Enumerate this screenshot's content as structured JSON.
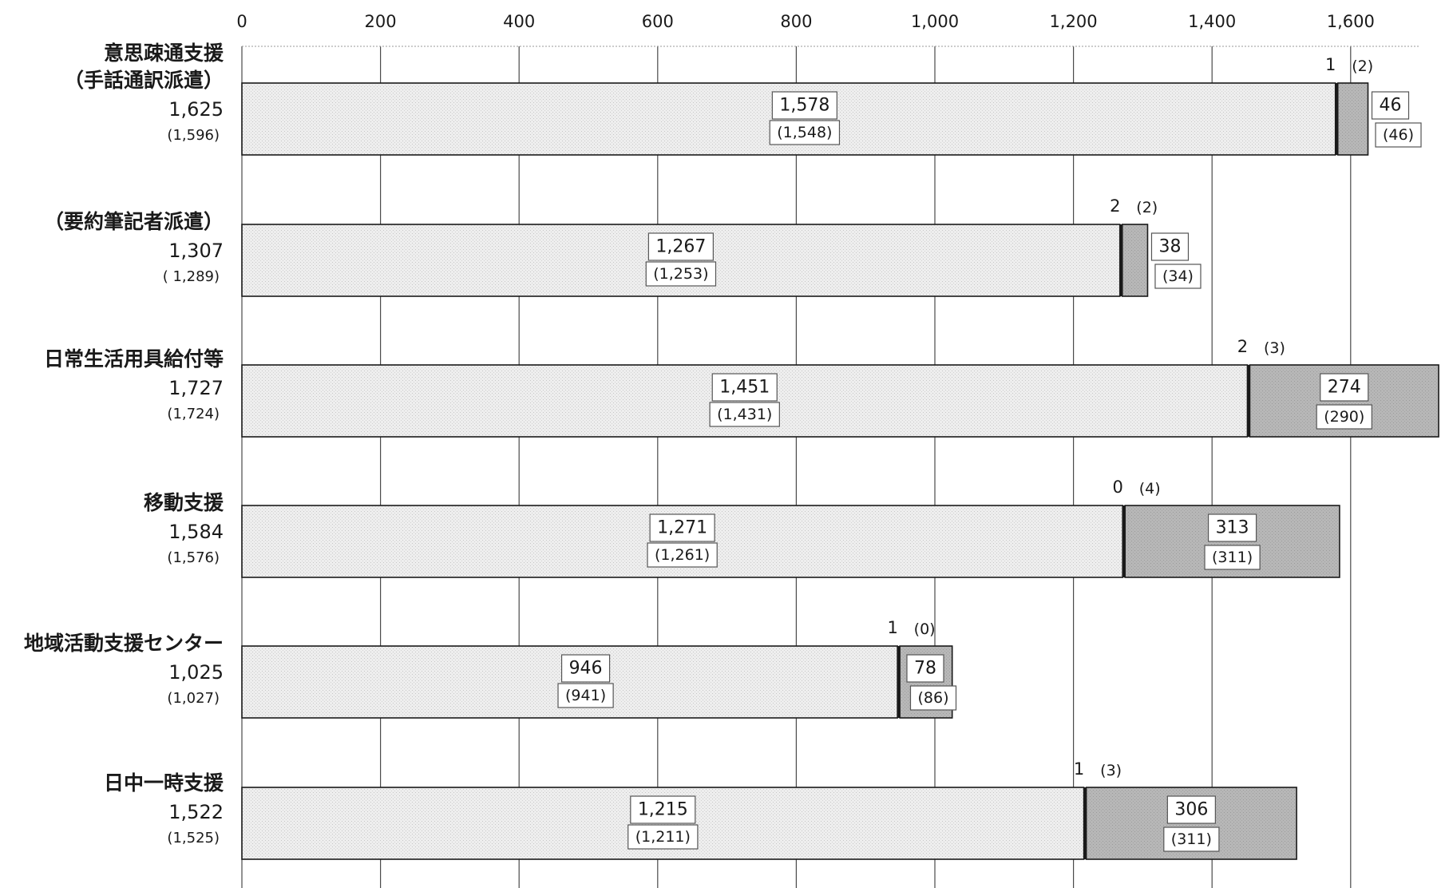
{
  "chart_data": {
    "type": "bar",
    "orientation": "horizontal",
    "stacked": true,
    "xlim": [
      0,
      1700
    ],
    "x_ticks": [
      "0",
      "200",
      "400",
      "600",
      "800",
      "1,000",
      "1,200",
      "1,400",
      "1,600"
    ],
    "x_tick_values": [
      0,
      200,
      400,
      600,
      800,
      1000,
      1200,
      1400,
      1600
    ],
    "grid": true,
    "colors": {
      "series1": "#e9e9e9",
      "series2": "#b3b3b3",
      "series3": "#1a1a1a"
    },
    "categories": [
      {
        "label_lines": [
          "意思疎通支援",
          "（手話通訳派遣）"
        ],
        "total": "1,625",
        "total_prev": "(1,596)",
        "segments": [
          {
            "value": 1578,
            "label": "1,578",
            "prev": "(1,548)"
          },
          {
            "value": 1,
            "label": "1",
            "prev": "(2)"
          },
          {
            "value": 46,
            "label": "46",
            "prev": "(46)"
          }
        ]
      },
      {
        "label_lines": [
          "（要約筆記者派遣）"
        ],
        "total": "1,307",
        "total_prev": "( 1,289)",
        "segments": [
          {
            "value": 1267,
            "label": "1,267",
            "prev": "(1,253)"
          },
          {
            "value": 2,
            "label": "2",
            "prev": "(2)"
          },
          {
            "value": 38,
            "label": "38",
            "prev": "(34)"
          }
        ]
      },
      {
        "label_lines": [
          "日常生活用具給付等"
        ],
        "total": "1,727",
        "total_prev": "(1,724)",
        "segments": [
          {
            "value": 1451,
            "label": "1,451",
            "prev": "(1,431)"
          },
          {
            "value": 2,
            "label": "2",
            "prev": "(3)"
          },
          {
            "value": 274,
            "label": "274",
            "prev": "(290)"
          }
        ]
      },
      {
        "label_lines": [
          "移動支援"
        ],
        "total": "1,584",
        "total_prev": "(1,576)",
        "segments": [
          {
            "value": 1271,
            "label": "1,271",
            "prev": "(1,261)"
          },
          {
            "value": 0,
            "label": "0",
            "prev": "(4)"
          },
          {
            "value": 313,
            "label": "313",
            "prev": "(311)"
          }
        ]
      },
      {
        "label_lines": [
          "地域活動支援センター"
        ],
        "total": "1,025",
        "total_prev": "(1,027)",
        "segments": [
          {
            "value": 946,
            "label": "946",
            "prev": "(941)"
          },
          {
            "value": 1,
            "label": "1",
            "prev": "(0)"
          },
          {
            "value": 78,
            "label": "78",
            "prev": "(86)"
          }
        ]
      },
      {
        "label_lines": [
          "日中一時支援"
        ],
        "total": "1,522",
        "total_prev": "(1,525)",
        "segments": [
          {
            "value": 1215,
            "label": "1,215",
            "prev": "(1,211)"
          },
          {
            "value": 1,
            "label": "1",
            "prev": "(3)"
          },
          {
            "value": 306,
            "label": "306",
            "prev": "(311)"
          }
        ]
      }
    ]
  }
}
